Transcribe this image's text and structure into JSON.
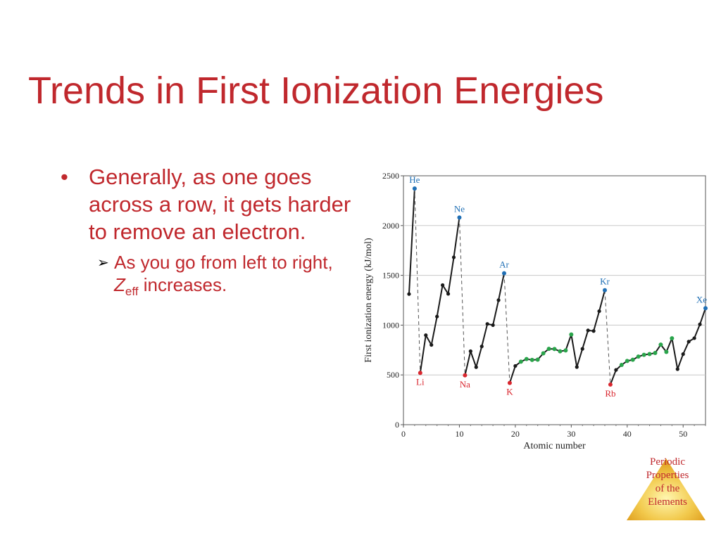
{
  "slide": {
    "title": "Trends in First Ionization Energies",
    "bullet_1": "Generally, as one goes across a row, it gets harder to remove an electron.",
    "bullet_2_prefix": "As you go from left to right, ",
    "bullet_2_symbol": "Z",
    "bullet_2_subscript": "eff",
    "bullet_2_suffix": " increases.",
    "bullet_marker": "•",
    "sub_bullet_marker": "➢"
  },
  "footer": {
    "lines": [
      "Periodic",
      "Properties",
      "of the",
      "Elements"
    ]
  },
  "colors": {
    "title": "#c0282d",
    "noble_gas": "#1f6fb5",
    "alkali": "#d9262e",
    "transition": "#2aa44b",
    "line": "#1a1a1a"
  },
  "chart_data": {
    "type": "line",
    "xlabel": "Atomic number",
    "ylabel": "First ionization energy (kJ/mol)",
    "xlim": [
      0,
      54
    ],
    "ylim": [
      0,
      2500
    ],
    "x_ticks": [
      0,
      10,
      20,
      30,
      40,
      50
    ],
    "y_ticks": [
      0,
      500,
      1000,
      1500,
      2000,
      2500
    ],
    "grid": "horizontal",
    "series": [
      {
        "x": [
          1,
          2,
          3,
          4,
          5,
          6,
          7,
          8,
          9,
          10,
          11,
          12,
          13,
          14,
          15,
          16,
          17,
          18,
          19,
          20,
          21,
          22,
          23,
          24,
          25,
          26,
          27,
          28,
          29,
          30,
          31,
          32,
          33,
          34,
          35,
          36,
          37,
          38,
          39,
          40,
          41,
          42,
          43,
          44,
          45,
          46,
          47,
          48,
          49,
          50,
          51,
          52,
          53,
          54
        ],
        "y": [
          1312,
          2372,
          520,
          899,
          801,
          1086,
          1402,
          1314,
          1681,
          2081,
          496,
          738,
          578,
          786,
          1012,
          1000,
          1251,
          1521,
          419,
          590,
          633,
          659,
          651,
          653,
          717,
          762,
          760,
          737,
          746,
          906,
          579,
          762,
          947,
          941,
          1140,
          1351,
          403,
          550,
          600,
          640,
          652,
          684,
          702,
          710,
          720,
          804,
          731,
          868,
          558,
          709,
          834,
          869,
          1008,
          1170
        ],
        "transition_metals": [
          21,
          22,
          23,
          24,
          25,
          26,
          27,
          28,
          29,
          30,
          39,
          40,
          41,
          42,
          43,
          44,
          45,
          46,
          47,
          48
        ]
      }
    ],
    "annotations": [
      {
        "label": "He",
        "x": 2,
        "group": "noble"
      },
      {
        "label": "Ne",
        "x": 10,
        "group": "noble"
      },
      {
        "label": "Ar",
        "x": 18,
        "group": "noble"
      },
      {
        "label": "Kr",
        "x": 36,
        "group": "noble"
      },
      {
        "label": "Xe",
        "x": 54,
        "group": "noble"
      },
      {
        "label": "Li",
        "x": 3,
        "group": "alkali"
      },
      {
        "label": "Na",
        "x": 11,
        "group": "alkali"
      },
      {
        "label": "K",
        "x": 19,
        "group": "alkali"
      },
      {
        "label": "Rb",
        "x": 37,
        "group": "alkali"
      }
    ],
    "dashed_connectors": [
      [
        2,
        3
      ],
      [
        10,
        11
      ],
      [
        18,
        19
      ],
      [
        36,
        37
      ]
    ]
  }
}
